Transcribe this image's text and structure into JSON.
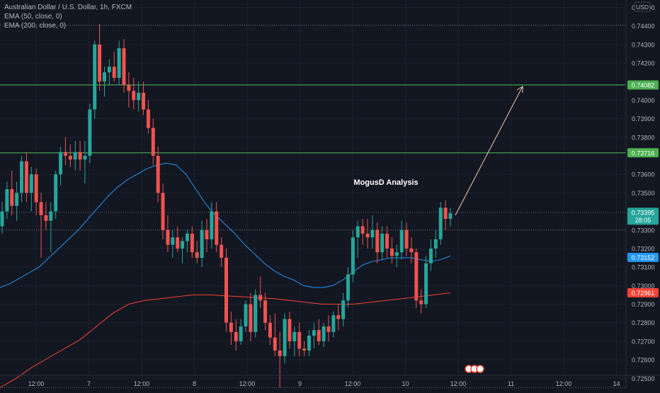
{
  "chart_data": {
    "type": "candlestick",
    "title": "Australian Dollar / U.S. Dollar, 1h, FXCM",
    "indicators": [
      "EMA (50, close, 0)",
      "EMA (200, close, 0)"
    ],
    "currency": "USD",
    "annotation": "MogusD Analysis",
    "y_range": [
      0.7244,
      0.7454
    ],
    "y_ticks": [
      "0.74500",
      "0.74400",
      "0.74300",
      "0.74200",
      "0.74000",
      "0.73900",
      "0.73800",
      "0.73600",
      "0.73500",
      "0.73300",
      "0.73200",
      "0.73100",
      "0.73000",
      "0.72900",
      "0.72800",
      "0.72700",
      "0.72600",
      "0.72500"
    ],
    "x_ticks": [
      "12:00",
      "7",
      "12:00",
      "8",
      "12:00",
      "9",
      "12:00",
      "10",
      "12:00",
      "11",
      "12:00",
      "14"
    ],
    "horizontal_levels": [
      {
        "value": 0.74082,
        "label": "0.74082",
        "color": "#4caf50"
      },
      {
        "value": 0.73716,
        "label": "0.73716",
        "color": "#4caf50"
      }
    ],
    "price_labels": [
      {
        "value": 0.73395,
        "label": "0.73395",
        "sublabel": "28:05",
        "color": "#26a69a"
      },
      {
        "value": 0.73152,
        "label": "0.73152",
        "color": "#2196f3"
      },
      {
        "value": 0.72961,
        "label": "0.72961",
        "color": "#f44336"
      }
    ],
    "dotted_levels": [
      0.74405,
      0.73395,
      0.733,
      0.7245
    ],
    "candles": [
      [
        0.7332,
        0.7345,
        0.7328,
        0.734
      ],
      [
        0.734,
        0.7356,
        0.7336,
        0.7352
      ],
      [
        0.7352,
        0.7362,
        0.7338,
        0.7343
      ],
      [
        0.7343,
        0.7356,
        0.7335,
        0.735
      ],
      [
        0.735,
        0.737,
        0.7345,
        0.7367
      ],
      [
        0.7367,
        0.7372,
        0.7345,
        0.735
      ],
      [
        0.735,
        0.7364,
        0.734,
        0.736
      ],
      [
        0.736,
        0.7363,
        0.7338,
        0.7345
      ],
      [
        0.7345,
        0.735,
        0.7315,
        0.7338
      ],
      [
        0.7338,
        0.7345,
        0.733,
        0.7335
      ],
      [
        0.7335,
        0.7345,
        0.7318,
        0.734
      ],
      [
        0.734,
        0.7362,
        0.7336,
        0.736
      ],
      [
        0.736,
        0.7375,
        0.7354,
        0.7372
      ],
      [
        0.7372,
        0.738,
        0.7365,
        0.737
      ],
      [
        0.737,
        0.7376,
        0.7364,
        0.7368
      ],
      [
        0.7368,
        0.7378,
        0.7362,
        0.7372
      ],
      [
        0.7372,
        0.7378,
        0.7362,
        0.7368
      ],
      [
        0.7368,
        0.7378,
        0.7355,
        0.737
      ],
      [
        0.737,
        0.7398,
        0.7366,
        0.7395
      ],
      [
        0.7395,
        0.7432,
        0.739,
        0.743
      ],
      [
        0.743,
        0.7441,
        0.7405,
        0.741
      ],
      [
        0.741,
        0.7418,
        0.7402,
        0.7415
      ],
      [
        0.7415,
        0.7422,
        0.7408,
        0.7418
      ],
      [
        0.7418,
        0.7426,
        0.741,
        0.7412
      ],
      [
        0.7412,
        0.7432,
        0.7408,
        0.7428
      ],
      [
        0.7428,
        0.7433,
        0.7404,
        0.7408
      ],
      [
        0.7408,
        0.7415,
        0.7396,
        0.7405
      ],
      [
        0.7405,
        0.7412,
        0.7395,
        0.74
      ],
      [
        0.74,
        0.741,
        0.7394,
        0.7404
      ],
      [
        0.7404,
        0.741,
        0.7392,
        0.7395
      ],
      [
        0.7395,
        0.74,
        0.7382,
        0.7385
      ],
      [
        0.7385,
        0.739,
        0.7365,
        0.737
      ],
      [
        0.737,
        0.7375,
        0.7345,
        0.735
      ],
      [
        0.735,
        0.7355,
        0.7325,
        0.733
      ],
      [
        0.733,
        0.7338,
        0.7318,
        0.7322
      ],
      [
        0.7322,
        0.733,
        0.7315,
        0.7326
      ],
      [
        0.7326,
        0.7332,
        0.7318,
        0.732
      ],
      [
        0.732,
        0.7326,
        0.7312,
        0.7324
      ],
      [
        0.7324,
        0.733,
        0.7318,
        0.7328
      ],
      [
        0.7328,
        0.7332,
        0.7315,
        0.7318
      ],
      [
        0.7318,
        0.7324,
        0.7312,
        0.7315
      ],
      [
        0.7315,
        0.7335,
        0.731,
        0.733
      ],
      [
        0.733,
        0.7336,
        0.7318,
        0.7325
      ],
      [
        0.7325,
        0.7345,
        0.732,
        0.734
      ],
      [
        0.734,
        0.7345,
        0.7318,
        0.7322
      ],
      [
        0.7322,
        0.7326,
        0.731,
        0.7315
      ],
      [
        0.7315,
        0.732,
        0.7275,
        0.728
      ],
      [
        0.728,
        0.7286,
        0.7268,
        0.7275
      ],
      [
        0.7275,
        0.7282,
        0.7265,
        0.727
      ],
      [
        0.727,
        0.7282,
        0.7268,
        0.7278
      ],
      [
        0.7278,
        0.7292,
        0.7275,
        0.729
      ],
      [
        0.729,
        0.7296,
        0.727,
        0.7275
      ],
      [
        0.7275,
        0.7298,
        0.7272,
        0.7295
      ],
      [
        0.7295,
        0.7305,
        0.7288,
        0.7292
      ],
      [
        0.7292,
        0.7296,
        0.7276,
        0.728
      ],
      [
        0.728,
        0.7284,
        0.7268,
        0.7272
      ],
      [
        0.7272,
        0.7285,
        0.7262,
        0.7265
      ],
      [
        0.7265,
        0.7275,
        0.7245,
        0.7262
      ],
      [
        0.7262,
        0.7285,
        0.7258,
        0.7282
      ],
      [
        0.7282,
        0.7286,
        0.7266,
        0.727
      ],
      [
        0.727,
        0.7278,
        0.7262,
        0.7275
      ],
      [
        0.7275,
        0.728,
        0.7262,
        0.7266
      ],
      [
        0.7266,
        0.727,
        0.7262,
        0.7265
      ],
      [
        0.7265,
        0.7276,
        0.7262,
        0.7273
      ],
      [
        0.7273,
        0.728,
        0.7266,
        0.7276
      ],
      [
        0.7276,
        0.7282,
        0.7268,
        0.727
      ],
      [
        0.727,
        0.728,
        0.7267,
        0.7278
      ],
      [
        0.7278,
        0.7284,
        0.727,
        0.7275
      ],
      [
        0.7275,
        0.7286,
        0.7272,
        0.7284
      ],
      [
        0.7284,
        0.729,
        0.7276,
        0.7282
      ],
      [
        0.7282,
        0.7296,
        0.7278,
        0.7292
      ],
      [
        0.7292,
        0.731,
        0.7288,
        0.7306
      ],
      [
        0.7306,
        0.733,
        0.7302,
        0.7326
      ],
      [
        0.7326,
        0.7335,
        0.7315,
        0.7332
      ],
      [
        0.7332,
        0.7336,
        0.7322,
        0.7328
      ],
      [
        0.7328,
        0.7336,
        0.732,
        0.7326
      ],
      [
        0.7326,
        0.7338,
        0.732,
        0.733
      ],
      [
        0.733,
        0.7334,
        0.7312,
        0.7318
      ],
      [
        0.7318,
        0.7332,
        0.7314,
        0.7328
      ],
      [
        0.7328,
        0.7332,
        0.7315,
        0.732
      ],
      [
        0.732,
        0.7326,
        0.7312,
        0.7316
      ],
      [
        0.7316,
        0.7322,
        0.731,
        0.7318
      ],
      [
        0.7318,
        0.7335,
        0.7314,
        0.733
      ],
      [
        0.733,
        0.7334,
        0.7316,
        0.732
      ],
      [
        0.732,
        0.7326,
        0.7312,
        0.7318
      ],
      [
        0.7318,
        0.732,
        0.7288,
        0.7292
      ],
      [
        0.7292,
        0.7298,
        0.7285,
        0.729
      ],
      [
        0.729,
        0.7316,
        0.7288,
        0.7312
      ],
      [
        0.7312,
        0.7325,
        0.7308,
        0.732
      ],
      [
        0.732,
        0.733,
        0.7315,
        0.7325
      ],
      [
        0.7325,
        0.7345,
        0.7322,
        0.7342
      ],
      [
        0.7342,
        0.7346,
        0.733,
        0.7336
      ],
      [
        0.7336,
        0.7342,
        0.7332,
        0.7339
      ]
    ],
    "ema50": [
      0.7299,
      0.7301,
      0.7304,
      0.7307,
      0.731,
      0.7315,
      0.732,
      0.7325,
      0.733,
      0.7336,
      0.7342,
      0.7348,
      0.7353,
      0.7357,
      0.736,
      0.7363,
      0.7365,
      0.7366,
      0.7365,
      0.736,
      0.7352,
      0.7344,
      0.7338,
      0.7333,
      0.7328,
      0.7322,
      0.7317,
      0.7312,
      0.7308,
      0.7305,
      0.7303,
      0.73,
      0.7299,
      0.7299,
      0.73,
      0.7303,
      0.7307,
      0.7311,
      0.7313,
      0.7314,
      0.7315,
      0.7315,
      0.7315,
      0.7314,
      0.7313,
      0.7314,
      0.7316
    ],
    "ema200": [
      0.7245,
      0.725,
      0.7256,
      0.7261,
      0.7266,
      0.7271,
      0.7278,
      0.7285,
      0.729,
      0.7292,
      0.7293,
      0.7294,
      0.7295,
      0.7295,
      0.72945,
      0.7294,
      0.72935,
      0.7293,
      0.7292,
      0.7291,
      0.729,
      0.729,
      0.729,
      0.7291,
      0.7292,
      0.7293,
      0.7294,
      0.7295,
      0.72961
    ]
  }
}
